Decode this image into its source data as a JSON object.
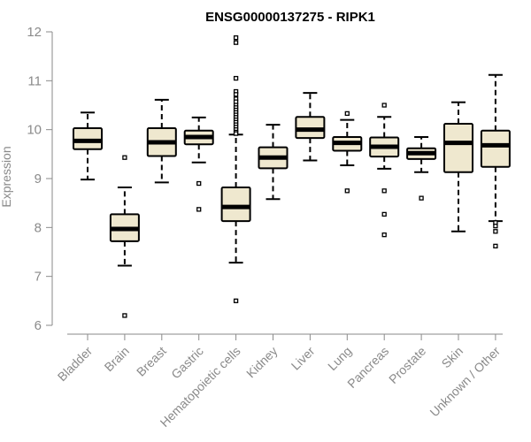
{
  "chart_data": {
    "type": "boxplot",
    "title": "ENSG00000137275 - RIPK1",
    "xlabel": "",
    "ylabel": "Expression",
    "ylim": [
      6,
      12
    ],
    "yticks": [
      6,
      7,
      8,
      9,
      10,
      11,
      12
    ],
    "grid": false,
    "box_fill": "#efe8cf",
    "box_stroke": "#000000",
    "median_color": "#000000",
    "axis_color": "#8a8a8a",
    "categories": [
      "Bladder",
      "Brain",
      "Breast",
      "Gastric",
      "Hematopoietic cells",
      "Kidney",
      "Liver",
      "Lung",
      "Pancreas",
      "Prostate",
      "Skin",
      "Unknown / Other"
    ],
    "boxes": [
      {
        "min": 8.98,
        "q1": 9.6,
        "median": 9.77,
        "q3": 10.03,
        "max": 10.35,
        "outliers": []
      },
      {
        "min": 7.22,
        "q1": 7.72,
        "median": 7.97,
        "q3": 8.27,
        "max": 8.82,
        "outliers": [
          9.43,
          6.2
        ]
      },
      {
        "min": 8.92,
        "q1": 9.46,
        "median": 9.74,
        "q3": 10.03,
        "max": 10.61,
        "outliers": []
      },
      {
        "min": 9.33,
        "q1": 9.7,
        "median": 9.85,
        "q3": 9.98,
        "max": 10.25,
        "outliers": [
          8.9,
          8.37
        ]
      },
      {
        "min": 7.28,
        "q1": 8.13,
        "median": 8.42,
        "q3": 8.82,
        "max": 9.9,
        "outliers": [
          11.88,
          11.78,
          11.05,
          10.78,
          10.72,
          10.63,
          10.57,
          10.5,
          10.45,
          10.4,
          10.35,
          10.3,
          10.25,
          10.2,
          10.15,
          10.1,
          10.05,
          10.0,
          9.95,
          9.92,
          6.5
        ]
      },
      {
        "min": 8.58,
        "q1": 9.21,
        "median": 9.43,
        "q3": 9.64,
        "max": 10.1,
        "outliers": []
      },
      {
        "min": 9.37,
        "q1": 9.83,
        "median": 10.0,
        "q3": 10.26,
        "max": 10.75,
        "outliers": []
      },
      {
        "min": 9.27,
        "q1": 9.57,
        "median": 9.73,
        "q3": 9.85,
        "max": 10.2,
        "outliers": [
          10.33,
          8.75
        ]
      },
      {
        "min": 9.2,
        "q1": 9.45,
        "median": 9.65,
        "q3": 9.84,
        "max": 10.26,
        "outliers": [
          10.5,
          8.75,
          8.27,
          7.85
        ]
      },
      {
        "min": 9.13,
        "q1": 9.4,
        "median": 9.52,
        "q3": 9.62,
        "max": 9.85,
        "outliers": [
          8.6
        ]
      },
      {
        "min": 7.92,
        "q1": 9.13,
        "median": 9.73,
        "q3": 10.12,
        "max": 10.56,
        "outliers": []
      },
      {
        "min": 8.13,
        "q1": 9.24,
        "median": 9.68,
        "q3": 9.98,
        "max": 11.12,
        "outliers": [
          8.1,
          8.03,
          7.92,
          7.62
        ]
      }
    ]
  }
}
